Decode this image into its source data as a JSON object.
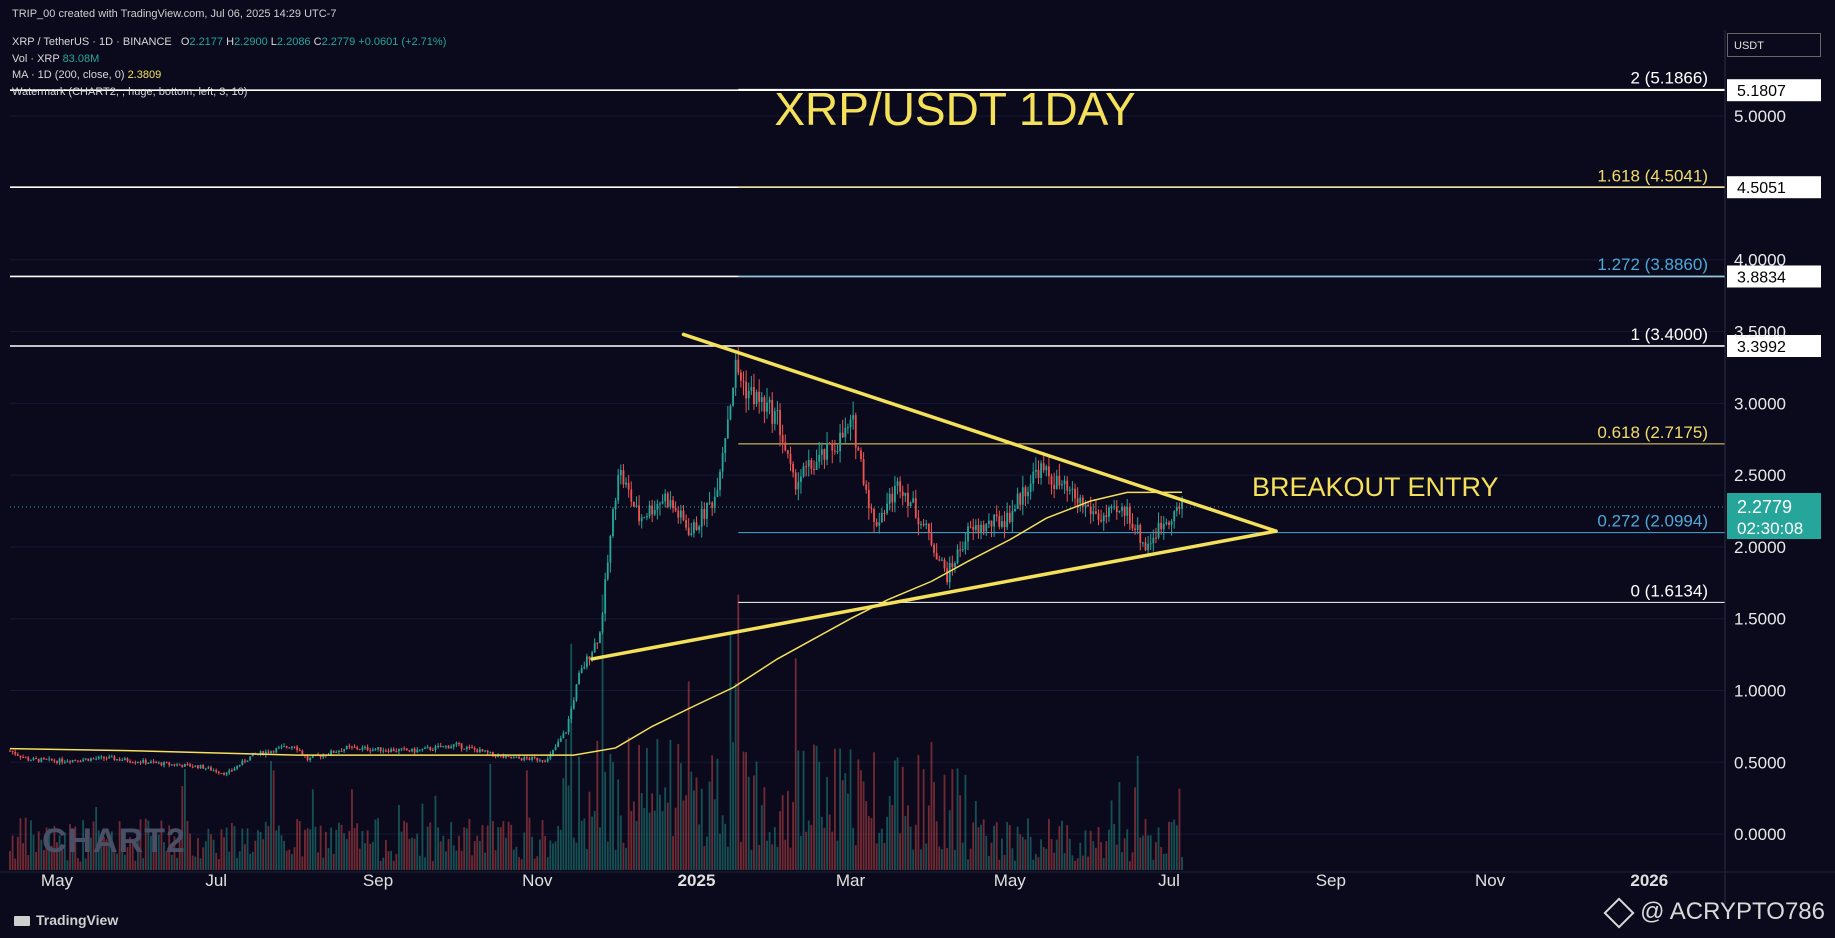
{
  "header": {
    "created_by": "TRIP_00 created with TradingView.com, Jul 06, 2025 14:29 UTC-7",
    "symbol_line": "XRP / TetherUS · 1D · BINANCE",
    "ohlc": {
      "o_label": "O",
      "o": "2.2177",
      "h_label": "H",
      "h": "2.2900",
      "l_label": "L",
      "l": "2.2086",
      "c_label": "C",
      "c": "2.2779",
      "change": "+0.0601 (+2.71%)"
    },
    "vol_line": "Vol · XRP",
    "vol_value": "83.08M",
    "ma_line": "MA · 1D (200, close, 0)",
    "ma_value": "2.3809",
    "watermark_line": "Watermark (CHART2, , huge, bottom, left, 3, 10)"
  },
  "axis_currency": "USDT",
  "watermark_text": "CHART2",
  "footer": {
    "logo": "TradingView",
    "handle": "@ ACRYPTO786"
  },
  "colors": {
    "background": "#0a0a1c",
    "up": "#26a69a",
    "down": "#ef5350",
    "trend": "#f5e05a",
    "fib_gold": "#f0dc6a",
    "fib_blue": "#4ea8d8",
    "level": "#ffffff",
    "current_price": "#26a69a"
  },
  "chart_data": {
    "type": "candlestick",
    "title": "XRP/USDT 1DAY",
    "annotation": "BREAKOUT ENTRY",
    "x_axis": {
      "tick_labels": [
        "May",
        "Jul",
        "Sep",
        "Nov",
        "2025",
        "Mar",
        "May",
        "Jul",
        "Sep",
        "Nov",
        "2026"
      ],
      "tick_dates": [
        "2024-05-01",
        "2024-07-01",
        "2024-09-01",
        "2024-11-01",
        "2025-01-01",
        "2025-03-01",
        "2025-05-01",
        "2025-07-01",
        "2025-09-01",
        "2025-11-01",
        "2026-01-01"
      ],
      "range": [
        "2024-04-13",
        "2026-01-30"
      ]
    },
    "y_axis": {
      "tick_labels": [
        "0.0000",
        "0.5000",
        "1.0000",
        "1.5000",
        "2.0000",
        "2.5000",
        "3.0000",
        "3.5000",
        "4.0000",
        "5.0000"
      ],
      "tick_values": [
        0,
        0.5,
        1,
        1.5,
        2,
        2.5,
        3,
        3.5,
        4,
        5
      ],
      "range": [
        -0.25,
        5.6
      ]
    },
    "horizontal_levels": [
      {
        "value": 5.1807,
        "label": "5.1807",
        "extent": "full"
      },
      {
        "value": 4.5051,
        "label": "4.5051",
        "extent": "full"
      },
      {
        "value": 3.8834,
        "label": "3.8834",
        "extent": "full"
      },
      {
        "value": 3.3992,
        "label": "3.3992",
        "extent": "full"
      }
    ],
    "fib_levels": [
      {
        "ratio": "2",
        "value": 5.1866,
        "label": "2 (5.1866)",
        "color": "#ffffff"
      },
      {
        "ratio": "1.618",
        "value": 4.5041,
        "label": "1.618 (4.5041)",
        "color": "#f0dc6a"
      },
      {
        "ratio": "1.272",
        "value": 3.886,
        "label": "1.272 (3.8860)",
        "color": "#4ea8d8"
      },
      {
        "ratio": "1",
        "value": 3.4,
        "label": "1 (3.4000)",
        "color": "#ffffff"
      },
      {
        "ratio": "0.618",
        "value": 2.7175,
        "label": "0.618 (2.7175)",
        "color": "#f0dc6a"
      },
      {
        "ratio": "0.272",
        "value": 2.0994,
        "label": "0.272 (2.0994)",
        "color": "#4ea8d8"
      },
      {
        "ratio": "0",
        "value": 1.6134,
        "label": "0 (1.6134)",
        "color": "#ffffff"
      }
    ],
    "fib_start_date": "2025-01-17",
    "trendlines": [
      {
        "name": "descending resistance",
        "from": {
          "date": "2024-12-27",
          "value": 3.48
        },
        "to": {
          "date": "2025-08-11",
          "value": 2.11
        }
      },
      {
        "name": "ascending support",
        "from": {
          "date": "2024-11-22",
          "value": 1.22
        },
        "to": {
          "date": "2025-08-11",
          "value": 2.11
        }
      }
    ],
    "current_price": {
      "value": 2.2779,
      "label": "2.2779",
      "countdown": "02:30:08"
    },
    "ma200_path": [
      {
        "date": "2024-04-13",
        "value": 0.595
      },
      {
        "date": "2024-06-01",
        "value": 0.58
      },
      {
        "date": "2024-08-01",
        "value": 0.55
      },
      {
        "date": "2024-10-01",
        "value": 0.55
      },
      {
        "date": "2024-11-15",
        "value": 0.55
      },
      {
        "date": "2024-12-01",
        "value": 0.6
      },
      {
        "date": "2024-12-15",
        "value": 0.75
      },
      {
        "date": "2025-01-01",
        "value": 0.9
      },
      {
        "date": "2025-01-15",
        "value": 1.02
      },
      {
        "date": "2025-02-01",
        "value": 1.22
      },
      {
        "date": "2025-02-15",
        "value": 1.36
      },
      {
        "date": "2025-03-01",
        "value": 1.5
      },
      {
        "date": "2025-03-15",
        "value": 1.63
      },
      {
        "date": "2025-04-01",
        "value": 1.76
      },
      {
        "date": "2025-04-15",
        "value": 1.9
      },
      {
        "date": "2025-05-01",
        "value": 2.05
      },
      {
        "date": "2025-05-15",
        "value": 2.2
      },
      {
        "date": "2025-06-01",
        "value": 2.32
      },
      {
        "date": "2025-06-15",
        "value": 2.38
      },
      {
        "date": "2025-07-06",
        "value": 2.3809
      }
    ],
    "price_path": [
      {
        "date": "2024-04-13",
        "value": 0.58
      },
      {
        "date": "2024-04-20",
        "value": 0.52
      },
      {
        "date": "2024-05-01",
        "value": 0.51
      },
      {
        "date": "2024-05-20",
        "value": 0.53
      },
      {
        "date": "2024-06-10",
        "value": 0.49
      },
      {
        "date": "2024-06-25",
        "value": 0.47
      },
      {
        "date": "2024-07-05",
        "value": 0.42
      },
      {
        "date": "2024-07-15",
        "value": 0.55
      },
      {
        "date": "2024-07-31",
        "value": 0.62
      },
      {
        "date": "2024-08-05",
        "value": 0.52
      },
      {
        "date": "2024-08-20",
        "value": 0.6
      },
      {
        "date": "2024-09-15",
        "value": 0.58
      },
      {
        "date": "2024-10-01",
        "value": 0.62
      },
      {
        "date": "2024-10-20",
        "value": 0.53
      },
      {
        "date": "2024-11-05",
        "value": 0.52
      },
      {
        "date": "2024-11-12",
        "value": 0.72
      },
      {
        "date": "2024-11-17",
        "value": 1.1
      },
      {
        "date": "2024-11-25",
        "value": 1.4
      },
      {
        "date": "2024-12-02",
        "value": 2.55
      },
      {
        "date": "2024-12-10",
        "value": 2.2
      },
      {
        "date": "2024-12-20",
        "value": 2.35
      },
      {
        "date": "2024-12-30",
        "value": 2.1
      },
      {
        "date": "2025-01-08",
        "value": 2.35
      },
      {
        "date": "2025-01-16",
        "value": 3.25
      },
      {
        "date": "2025-01-20",
        "value": 3.1
      },
      {
        "date": "2025-02-01",
        "value": 2.9
      },
      {
        "date": "2025-02-07",
        "value": 2.45
      },
      {
        "date": "2025-02-20",
        "value": 2.65
      },
      {
        "date": "2025-03-02",
        "value": 2.85
      },
      {
        "date": "2025-03-10",
        "value": 2.15
      },
      {
        "date": "2025-03-20",
        "value": 2.45
      },
      {
        "date": "2025-03-31",
        "value": 2.08
      },
      {
        "date": "2025-04-07",
        "value": 1.8
      },
      {
        "date": "2025-04-15",
        "value": 2.1
      },
      {
        "date": "2025-04-30",
        "value": 2.2
      },
      {
        "date": "2025-05-12",
        "value": 2.55
      },
      {
        "date": "2025-05-25",
        "value": 2.35
      },
      {
        "date": "2025-06-05",
        "value": 2.2
      },
      {
        "date": "2025-06-15",
        "value": 2.25
      },
      {
        "date": "2025-06-22",
        "value": 2.0
      },
      {
        "date": "2025-06-30",
        "value": 2.2
      },
      {
        "date": "2025-07-06",
        "value": 2.2779
      }
    ]
  }
}
